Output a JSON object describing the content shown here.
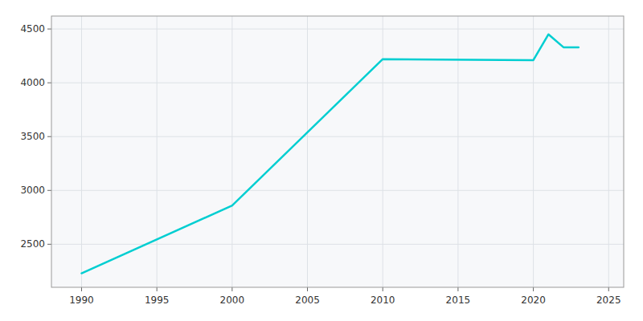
{
  "chart_data": {
    "type": "line",
    "x": [
      1990,
      2000,
      2010,
      2020,
      2021,
      2022,
      2023
    ],
    "values": [
      2230,
      2860,
      4220,
      4210,
      4450,
      4330,
      4330
    ],
    "color": "#00CED1",
    "xlim": [
      1988,
      2026
    ],
    "ylim": [
      2100,
      4620
    ],
    "xticks": [
      1990,
      1995,
      2000,
      2005,
      2010,
      2015,
      2020,
      2025
    ],
    "yticks": [
      2500,
      3000,
      3500,
      4000,
      4500
    ],
    "grid": true
  }
}
